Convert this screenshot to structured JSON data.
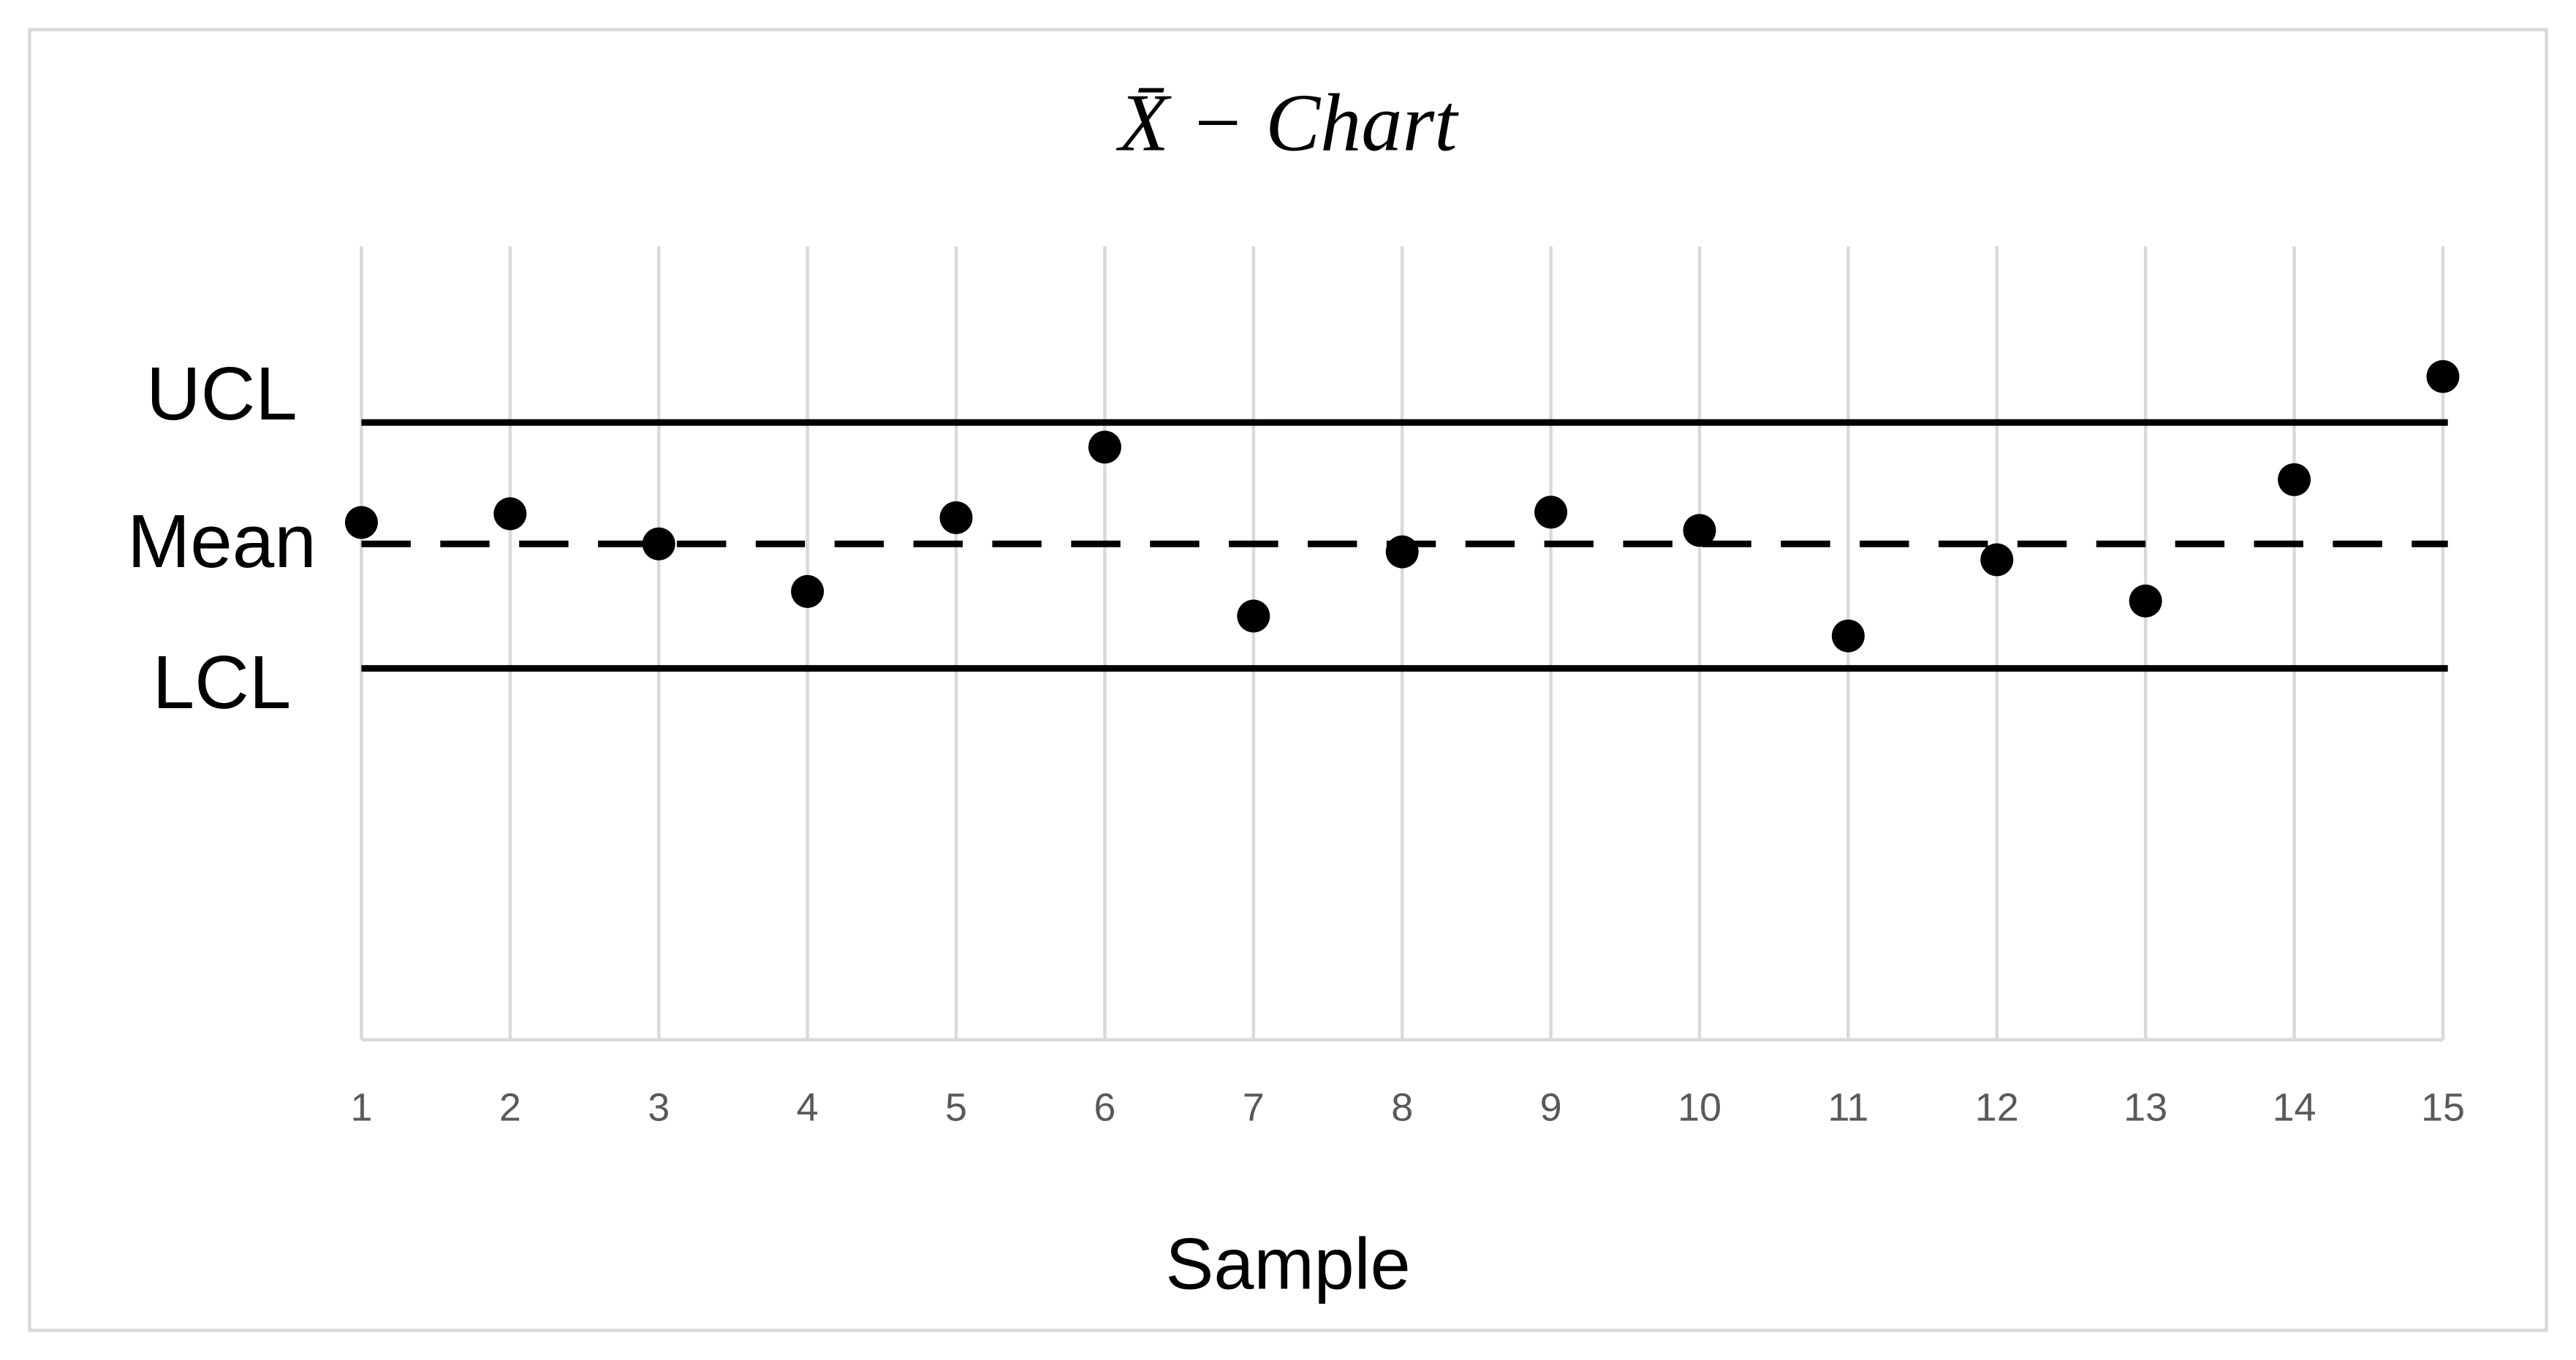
{
  "chart_data": {
    "type": "control",
    "title": "X̄ − Chart",
    "x_label": "Sample",
    "x": [
      1,
      2,
      3,
      4,
      5,
      6,
      7,
      8,
      9,
      10,
      11,
      12,
      13,
      14,
      15
    ],
    "values": [
      65.2,
      66.3,
      62.5,
      56.5,
      65.8,
      74.7,
      53.4,
      61.5,
      66.5,
      64.2,
      50.9,
      60.5,
      55.3,
      70.6,
      83.6
    ],
    "color": "#000000",
    "control_lines": [
      {
        "name": "UCL",
        "value": 77.8,
        "style": "solid"
      },
      {
        "name": "Mean",
        "value": 62.5,
        "style": "dashed"
      },
      {
        "name": "LCL",
        "value": 46.8,
        "style": "solid"
      }
    ],
    "xlim": [
      1,
      15
    ],
    "xticks": [
      1,
      2,
      3,
      4,
      5,
      6,
      7,
      8,
      9,
      10,
      11,
      12,
      13,
      14,
      15
    ],
    "ylim": [
      0,
      100
    ],
    "grid": true
  }
}
